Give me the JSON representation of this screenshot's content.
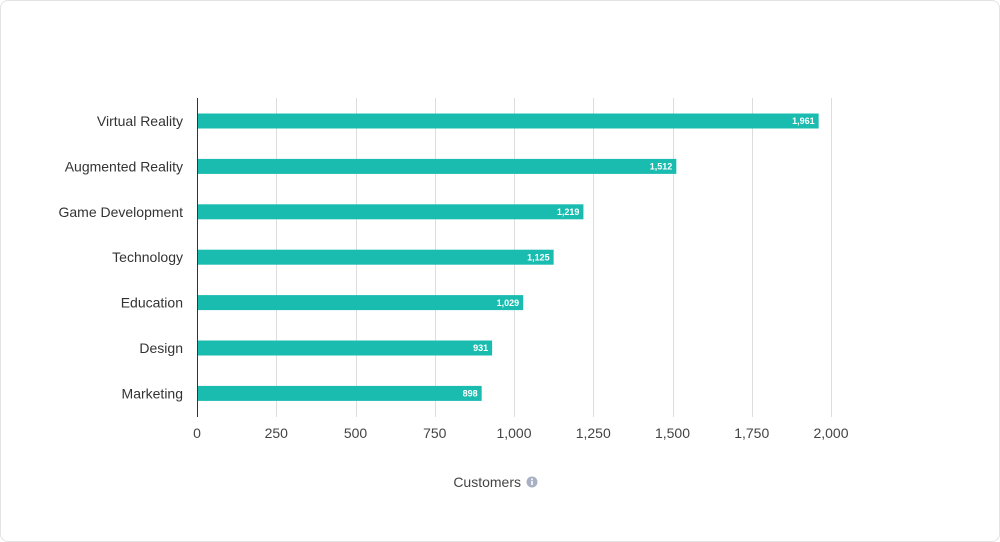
{
  "colors": {
    "bar": "#1abcb0",
    "grid": "#dddddd",
    "axis": "#333333",
    "info_icon": "#a9b0c4"
  },
  "chart_data": {
    "type": "bar",
    "orientation": "horizontal",
    "categories": [
      "Virtual Reality",
      "Augmented Reality",
      "Game Development",
      "Technology",
      "Education",
      "Design",
      "Marketing"
    ],
    "values": [
      1961,
      1512,
      1219,
      1125,
      1029,
      931,
      898
    ],
    "value_labels": [
      "1,961",
      "1,512",
      "1,219",
      "1,125",
      "1,029",
      "931",
      "898"
    ],
    "xlabel": "Customers",
    "xlim": [
      0,
      2000
    ],
    "xticks": [
      0,
      250,
      500,
      750,
      1000,
      1250,
      1500,
      1750,
      2000
    ],
    "xtick_labels": [
      "0",
      "250",
      "500",
      "750",
      "1,000",
      "1,250",
      "1,500",
      "1,750",
      "2,000"
    ],
    "grid": true,
    "legend": "none"
  }
}
